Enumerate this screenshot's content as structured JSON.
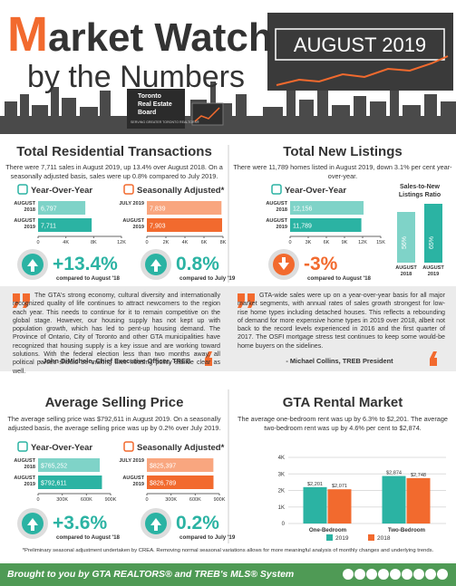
{
  "header": {
    "title_initial": "M",
    "title_rest": "arket Watch",
    "subtitle": "by the Numbers",
    "date": "AUGUST 2019",
    "logo": [
      "Toronto",
      "Real Estate",
      "Board"
    ],
    "logo_tagline": "SERVING GREATER TORONTO REALTORS®"
  },
  "transactions": {
    "title": "Total Residential Transactions",
    "text": "There were 7,711 sales in August 2019, up 13.4% over August 2018. On a seasonally adjusted basis, sales were up 0.8% compared to July 2019.",
    "yoy": {
      "heading": "Year-Over-Year",
      "categories": [
        "AUGUST 2018",
        "AUGUST 2019"
      ],
      "values": [
        6797,
        7711
      ],
      "value_labels": [
        "6,797",
        "7,711"
      ],
      "colors": [
        "#7fd3c8",
        "#2bb3a3"
      ],
      "xlim": [
        0,
        12000
      ],
      "xticks": [
        0,
        {
          "value": 4000,
          "label": "4K"
        },
        {
          "value": 8000,
          "label": "8K"
        },
        {
          "value": 12000,
          "label": "12K"
        }
      ],
      "change": "+13.4%",
      "caption": "compared to August '18",
      "direction": "up"
    },
    "seasonal": {
      "heading": "Seasonally Adjusted*",
      "categories": [
        "JULY 2019",
        "AUGUST 2019"
      ],
      "values": [
        7839,
        7903
      ],
      "value_labels": [
        "7,839",
        "7,903"
      ],
      "colors": [
        "#f9a67f",
        "#f26a2e"
      ],
      "xlim": [
        0,
        8000
      ],
      "xticks": [
        0,
        {
          "value": 2000,
          "label": "2K"
        },
        {
          "value": 4000,
          "label": "4K"
        },
        {
          "value": 6000,
          "label": "6K"
        },
        {
          "value": 8000,
          "label": "8K"
        }
      ],
      "change": "0.8%",
      "caption": "compared to July '19",
      "direction": "up"
    }
  },
  "listings": {
    "title": "Total New Listings",
    "text": "There were 11,789 homes listed in August 2019, down 3.1% per cent year-over-year.",
    "yoy": {
      "heading": "Year-Over-Year",
      "categories": [
        "AUGUST 2018",
        "AUGUST 2019"
      ],
      "values": [
        12156,
        11789
      ],
      "value_labels": [
        "12,156",
        "11,789"
      ],
      "colors": [
        "#7fd3c8",
        "#2bb3a3"
      ],
      "xlim": [
        0,
        15000
      ],
      "xticks": [
        0,
        {
          "value": 3000,
          "label": "3K"
        },
        {
          "value": 6000,
          "label": "6K"
        },
        {
          "value": 9000,
          "label": "9K"
        },
        {
          "value": 12000,
          "label": "12K"
        },
        {
          "value": 15000,
          "label": "15K"
        }
      ],
      "change": "-3%",
      "caption": "compared to August '18",
      "direction": "down"
    },
    "ratio": {
      "title": "Sales-to-New Listings Ratio",
      "categories": [
        "AUGUST 2018",
        "AUGUST 2019"
      ],
      "values": [
        56,
        65
      ],
      "value_labels": [
        "56%",
        "65%"
      ],
      "colors": [
        "#7fd3c8",
        "#2bb3a3"
      ]
    }
  },
  "quotes": [
    {
      "text": "The GTA's strong economy, cultural diversity and internationally recognized quality of life continues to attract newcomers to the region each year. This needs to continue for it to remain competitive on the global stage. However, our housing supply has not kept up with population growth, which has led to pent-up housing demand. The Province of Ontario, City of Toronto and other GTA municipalities have recognized that housing supply is a key issue and are working toward solutions. With the federal election less than two months away, all political parties should be making their housing policy stance clear as well.",
      "author": "- John DiMichele, Chief Executive Officer, TREB"
    },
    {
      "text": "GTA-wide sales were up on a year-over-year basis for all major market segments, with annual rates of sales growth strongest for low-rise home types including detached houses. This reflects a rebounding of demand for more expensive home types in 2019 over 2018, albeit not back to the record levels experienced in 2016 and the first quarter of 2017. The OSFI mortgage stress test continues to keep some would-be home buyers on the sidelines.",
      "author": "- Michael Collins, TREB President"
    }
  ],
  "price": {
    "title": "Average Selling Price",
    "text": "The average selling price was $792,611 in August 2019. On a seasonally adjusted basis, the average selling price was up by 0.2% over July 2019.",
    "yoy": {
      "heading": "Year-Over-Year",
      "categories": [
        "AUGUST 2018",
        "AUGUST 2019"
      ],
      "values": [
        765252,
        792611
      ],
      "value_labels": [
        "$765,252",
        "$792,611"
      ],
      "colors": [
        "#7fd3c8",
        "#2bb3a3"
      ],
      "xlim": [
        0,
        900000
      ],
      "xticks": [
        0,
        {
          "value": 300000,
          "label": "300K"
        },
        {
          "value": 600000,
          "label": "600K"
        },
        {
          "value": 900000,
          "label": "900K"
        }
      ],
      "change": "+3.6%",
      "caption": "compared to August '18",
      "direction": "up"
    },
    "seasonal": {
      "heading": "Seasonally Adjusted*",
      "categories": [
        "JULY 2019",
        "AUGUST 2019"
      ],
      "values": [
        825397,
        826789
      ],
      "value_labels": [
        "$825,397",
        "$826,789"
      ],
      "colors": [
        "#f9a67f",
        "#f26a2e"
      ],
      "xlim": [
        0,
        900000
      ],
      "xticks": [
        0,
        {
          "value": 300000,
          "label": "300K"
        },
        {
          "value": 600000,
          "label": "600K"
        },
        {
          "value": 900000,
          "label": "900K"
        }
      ],
      "change": "0.2%",
      "caption": "compared to July '19",
      "direction": "up"
    }
  },
  "rental": {
    "title": "GTA Rental Market",
    "text": "The average one-bedroom rent was up by 6.3% to $2,201. The average two-bedroom rent was up by 4.6% per cent to $2,874.",
    "categories": [
      "One-Bedroom",
      "Two-Bedroom"
    ],
    "series": [
      {
        "name": "2019",
        "color": "#2bb3a3",
        "values": [
          2201,
          2874
        ],
        "value_labels": [
          "$2,201",
          "$2,874"
        ]
      },
      {
        "name": "2018",
        "color": "#f26a2e",
        "values": [
          2071,
          2748
        ],
        "value_labels": [
          "$2,071",
          "$2,748"
        ]
      }
    ],
    "ylim": [
      0,
      4000
    ],
    "yticks": [
      0,
      {
        "value": 1000,
        "label": "1K"
      },
      {
        "value": 2000,
        "label": "2K"
      },
      {
        "value": 3000,
        "label": "3K"
      },
      {
        "value": 4000,
        "label": "4K"
      }
    ]
  },
  "footnote": "*Preliminary seasonal adjustment undertaken by CREA. Removing normal seasonal variations allows for more meaningful analysis of monthly changes and underlying trends.",
  "footer": "Brought to you by GTA REALTORS® and TREB's MLS® System"
}
